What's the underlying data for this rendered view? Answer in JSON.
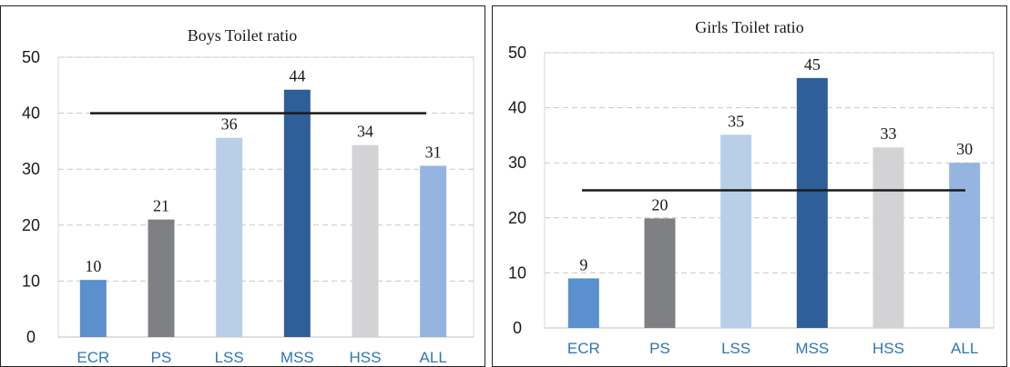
{
  "chart_data": [
    {
      "type": "bar",
      "title": "Boys Toilet ratio",
      "xlabel": "",
      "ylabel": "",
      "categories": [
        "ECR",
        "PS",
        "LSS",
        "MSS",
        "HSS",
        "ALL"
      ],
      "values": [
        10,
        21,
        36,
        44,
        34,
        31
      ],
      "data_labels": [
        "10",
        "21",
        "36",
        "44",
        "34",
        "31"
      ],
      "bar_heights": [
        10.2,
        21,
        35.6,
        44.2,
        34.3,
        30.6
      ],
      "colors": [
        "#5b8fce",
        "#7f8083",
        "#b9cfe8",
        "#2f5f98",
        "#d3d3d5",
        "#95b5e0"
      ],
      "ylim": [
        0,
        50
      ],
      "yticks": [
        "0",
        "10",
        "20",
        "30",
        "40",
        "50"
      ],
      "reference_line": 40,
      "grid": true
    },
    {
      "type": "bar",
      "title": "Girls Toilet ratio",
      "xlabel": "",
      "ylabel": "",
      "categories": [
        "ECR",
        "PS",
        "LSS",
        "MSS",
        "HSS",
        "ALL"
      ],
      "values": [
        9,
        20,
        35,
        45,
        33,
        30
      ],
      "data_labels": [
        "9",
        "20",
        "35",
        "45",
        "33",
        "30"
      ],
      "bar_heights": [
        9,
        19.9,
        35.1,
        45.4,
        32.8,
        30
      ],
      "colors": [
        "#5b8fce",
        "#7f8083",
        "#b9cfe8",
        "#2f5f98",
        "#d3d3d5",
        "#95b5e0"
      ],
      "ylim": [
        0,
        50
      ],
      "yticks": [
        "0",
        "10",
        "20",
        "30",
        "40",
        "50"
      ],
      "reference_line": 25,
      "grid": true
    }
  ]
}
